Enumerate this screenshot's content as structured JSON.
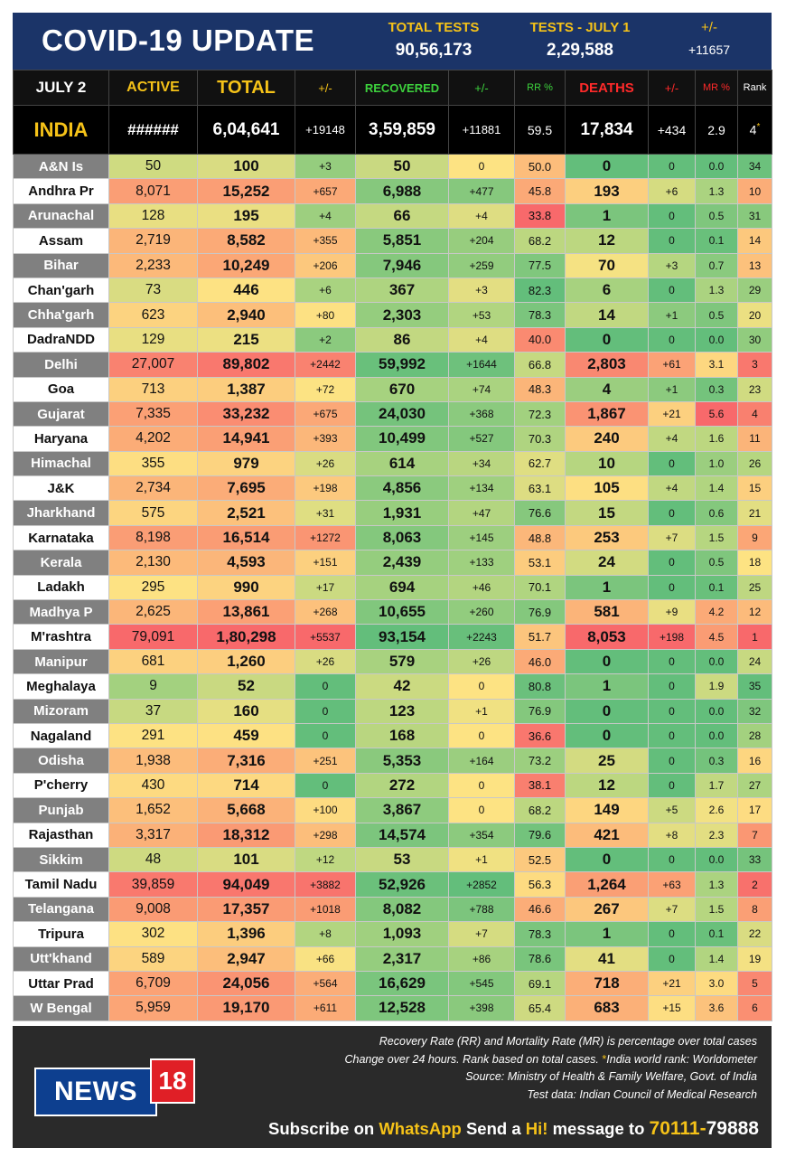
{
  "header": {
    "title": "COVID-19 UPDATE",
    "total_tests_label": "TOTAL TESTS",
    "total_tests_value": "90,56,173",
    "tests_day_label": "TESTS - JULY 1",
    "tests_day_value": "2,29,588",
    "change_label": "+/-",
    "change_value": "+11657"
  },
  "columns": {
    "date": "JULY 2",
    "active": "ACTIVE",
    "total": "TOTAL",
    "pm1": "+/-",
    "recovered": "RECOVERED",
    "pm2": "+/-",
    "rr": "RR %",
    "deaths": "DEATHS",
    "pm3": "+/-",
    "mr": "MR %",
    "rank": "Rank"
  },
  "india": {
    "name": "INDIA",
    "active": "######",
    "total": "6,04,641",
    "total_change": "+19148",
    "recovered": "3,59,859",
    "recovered_change": "+11881",
    "rr": "59.5",
    "deaths": "17,834",
    "deaths_change": "+434",
    "mr": "2.9",
    "rank": "4",
    "rank_mark": "*"
  },
  "palette": {
    "green": "#63be7b",
    "light_green": "#b1d580",
    "yellow": "#fde383",
    "orange": "#fbaa77",
    "red": "#f8696b",
    "header_blue": "#1b3468",
    "accent_yellow": "#f5c218"
  },
  "rows": [
    {
      "name": "A&N Is",
      "active": "50",
      "total": "100",
      "total_change": "+3",
      "recovered": "50",
      "recovered_change": "0",
      "rr": "50.0",
      "deaths": "0",
      "deaths_change": "0",
      "mr": "0.0",
      "rank": "34"
    },
    {
      "name": "Andhra Pr",
      "active": "8,071",
      "total": "15,252",
      "total_change": "+657",
      "recovered": "6,988",
      "recovered_change": "+477",
      "rr": "45.8",
      "deaths": "193",
      "deaths_change": "+6",
      "mr": "1.3",
      "rank": "10"
    },
    {
      "name": "Arunachal",
      "active": "128",
      "total": "195",
      "total_change": "+4",
      "recovered": "66",
      "recovered_change": "+4",
      "rr": "33.8",
      "deaths": "1",
      "deaths_change": "0",
      "mr": "0.5",
      "rank": "31"
    },
    {
      "name": "Assam",
      "active": "2,719",
      "total": "8,582",
      "total_change": "+355",
      "recovered": "5,851",
      "recovered_change": "+204",
      "rr": "68.2",
      "deaths": "12",
      "deaths_change": "0",
      "mr": "0.1",
      "rank": "14"
    },
    {
      "name": "Bihar",
      "active": "2,233",
      "total": "10,249",
      "total_change": "+206",
      "recovered": "7,946",
      "recovered_change": "+259",
      "rr": "77.5",
      "deaths": "70",
      "deaths_change": "+3",
      "mr": "0.7",
      "rank": "13"
    },
    {
      "name": "Chan'garh",
      "active": "73",
      "total": "446",
      "total_change": "+6",
      "recovered": "367",
      "recovered_change": "+3",
      "rr": "82.3",
      "deaths": "6",
      "deaths_change": "0",
      "mr": "1.3",
      "rank": "29"
    },
    {
      "name": "Chha'garh",
      "active": "623",
      "total": "2,940",
      "total_change": "+80",
      "recovered": "2,303",
      "recovered_change": "+53",
      "rr": "78.3",
      "deaths": "14",
      "deaths_change": "+1",
      "mr": "0.5",
      "rank": "20"
    },
    {
      "name": "DadraNDD",
      "active": "129",
      "total": "215",
      "total_change": "+2",
      "recovered": "86",
      "recovered_change": "+4",
      "rr": "40.0",
      "deaths": "0",
      "deaths_change": "0",
      "mr": "0.0",
      "rank": "30"
    },
    {
      "name": "Delhi",
      "active": "27,007",
      "total": "89,802",
      "total_change": "+2442",
      "recovered": "59,992",
      "recovered_change": "+1644",
      "rr": "66.8",
      "deaths": "2,803",
      "deaths_change": "+61",
      "mr": "3.1",
      "rank": "3"
    },
    {
      "name": "Goa",
      "active": "713",
      "total": "1,387",
      "total_change": "+72",
      "recovered": "670",
      "recovered_change": "+74",
      "rr": "48.3",
      "deaths": "4",
      "deaths_change": "+1",
      "mr": "0.3",
      "rank": "23"
    },
    {
      "name": "Gujarat",
      "active": "7,335",
      "total": "33,232",
      "total_change": "+675",
      "recovered": "24,030",
      "recovered_change": "+368",
      "rr": "72.3",
      "deaths": "1,867",
      "deaths_change": "+21",
      "mr": "5.6",
      "rank": "4"
    },
    {
      "name": "Haryana",
      "active": "4,202",
      "total": "14,941",
      "total_change": "+393",
      "recovered": "10,499",
      "recovered_change": "+527",
      "rr": "70.3",
      "deaths": "240",
      "deaths_change": "+4",
      "mr": "1.6",
      "rank": "11"
    },
    {
      "name": "Himachal",
      "active": "355",
      "total": "979",
      "total_change": "+26",
      "recovered": "614",
      "recovered_change": "+34",
      "rr": "62.7",
      "deaths": "10",
      "deaths_change": "0",
      "mr": "1.0",
      "rank": "26"
    },
    {
      "name": "J&K",
      "active": "2,734",
      "total": "7,695",
      "total_change": "+198",
      "recovered": "4,856",
      "recovered_change": "+134",
      "rr": "63.1",
      "deaths": "105",
      "deaths_change": "+4",
      "mr": "1.4",
      "rank": "15"
    },
    {
      "name": "Jharkhand",
      "active": "575",
      "total": "2,521",
      "total_change": "+31",
      "recovered": "1,931",
      "recovered_change": "+47",
      "rr": "76.6",
      "deaths": "15",
      "deaths_change": "0",
      "mr": "0.6",
      "rank": "21"
    },
    {
      "name": "Karnataka",
      "active": "8,198",
      "total": "16,514",
      "total_change": "+1272",
      "recovered": "8,063",
      "recovered_change": "+145",
      "rr": "48.8",
      "deaths": "253",
      "deaths_change": "+7",
      "mr": "1.5",
      "rank": "9"
    },
    {
      "name": "Kerala",
      "active": "2,130",
      "total": "4,593",
      "total_change": "+151",
      "recovered": "2,439",
      "recovered_change": "+133",
      "rr": "53.1",
      "deaths": "24",
      "deaths_change": "0",
      "mr": "0.5",
      "rank": "18"
    },
    {
      "name": "Ladakh",
      "active": "295",
      "total": "990",
      "total_change": "+17",
      "recovered": "694",
      "recovered_change": "+46",
      "rr": "70.1",
      "deaths": "1",
      "deaths_change": "0",
      "mr": "0.1",
      "rank": "25"
    },
    {
      "name": "Madhya P",
      "active": "2,625",
      "total": "13,861",
      "total_change": "+268",
      "recovered": "10,655",
      "recovered_change": "+260",
      "rr": "76.9",
      "deaths": "581",
      "deaths_change": "+9",
      "mr": "4.2",
      "rank": "12"
    },
    {
      "name": "M'rashtra",
      "active": "79,091",
      "total": "1,80,298",
      "total_change": "+5537",
      "recovered": "93,154",
      "recovered_change": "+2243",
      "rr": "51.7",
      "deaths": "8,053",
      "deaths_change": "+198",
      "mr": "4.5",
      "rank": "1"
    },
    {
      "name": "Manipur",
      "active": "681",
      "total": "1,260",
      "total_change": "+26",
      "recovered": "579",
      "recovered_change": "+26",
      "rr": "46.0",
      "deaths": "0",
      "deaths_change": "0",
      "mr": "0.0",
      "rank": "24"
    },
    {
      "name": "Meghalaya",
      "active": "9",
      "total": "52",
      "total_change": "0",
      "recovered": "42",
      "recovered_change": "0",
      "rr": "80.8",
      "deaths": "1",
      "deaths_change": "0",
      "mr": "1.9",
      "rank": "35"
    },
    {
      "name": "Mizoram",
      "active": "37",
      "total": "160",
      "total_change": "0",
      "recovered": "123",
      "recovered_change": "+1",
      "rr": "76.9",
      "deaths": "0",
      "deaths_change": "0",
      "mr": "0.0",
      "rank": "32"
    },
    {
      "name": "Nagaland",
      "active": "291",
      "total": "459",
      "total_change": "0",
      "recovered": "168",
      "recovered_change": "0",
      "rr": "36.6",
      "deaths": "0",
      "deaths_change": "0",
      "mr": "0.0",
      "rank": "28"
    },
    {
      "name": "Odisha",
      "active": "1,938",
      "total": "7,316",
      "total_change": "+251",
      "recovered": "5,353",
      "recovered_change": "+164",
      "rr": "73.2",
      "deaths": "25",
      "deaths_change": "0",
      "mr": "0.3",
      "rank": "16"
    },
    {
      "name": "P'cherry",
      "active": "430",
      "total": "714",
      "total_change": "0",
      "recovered": "272",
      "recovered_change": "0",
      "rr": "38.1",
      "deaths": "12",
      "deaths_change": "0",
      "mr": "1.7",
      "rank": "27"
    },
    {
      "name": "Punjab",
      "active": "1,652",
      "total": "5,668",
      "total_change": "+100",
      "recovered": "3,867",
      "recovered_change": "0",
      "rr": "68.2",
      "deaths": "149",
      "deaths_change": "+5",
      "mr": "2.6",
      "rank": "17"
    },
    {
      "name": "Rajasthan",
      "active": "3,317",
      "total": "18,312",
      "total_change": "+298",
      "recovered": "14,574",
      "recovered_change": "+354",
      "rr": "79.6",
      "deaths": "421",
      "deaths_change": "+8",
      "mr": "2.3",
      "rank": "7"
    },
    {
      "name": "Sikkim",
      "active": "48",
      "total": "101",
      "total_change": "+12",
      "recovered": "53",
      "recovered_change": "+1",
      "rr": "52.5",
      "deaths": "0",
      "deaths_change": "0",
      "mr": "0.0",
      "rank": "33"
    },
    {
      "name": "Tamil Nadu",
      "active": "39,859",
      "total": "94,049",
      "total_change": "+3882",
      "recovered": "52,926",
      "recovered_change": "+2852",
      "rr": "56.3",
      "deaths": "1,264",
      "deaths_change": "+63",
      "mr": "1.3",
      "rank": "2"
    },
    {
      "name": "Telangana",
      "active": "9,008",
      "total": "17,357",
      "total_change": "+1018",
      "recovered": "8,082",
      "recovered_change": "+788",
      "rr": "46.6",
      "deaths": "267",
      "deaths_change": "+7",
      "mr": "1.5",
      "rank": "8"
    },
    {
      "name": "Tripura",
      "active": "302",
      "total": "1,396",
      "total_change": "+8",
      "recovered": "1,093",
      "recovered_change": "+7",
      "rr": "78.3",
      "deaths": "1",
      "deaths_change": "0",
      "mr": "0.1",
      "rank": "22"
    },
    {
      "name": "Utt'khand",
      "active": "589",
      "total": "2,947",
      "total_change": "+66",
      "recovered": "2,317",
      "recovered_change": "+86",
      "rr": "78.6",
      "deaths": "41",
      "deaths_change": "0",
      "mr": "1.4",
      "rank": "19"
    },
    {
      "name": "Uttar Prad",
      "active": "6,709",
      "total": "24,056",
      "total_change": "+564",
      "recovered": "16,629",
      "recovered_change": "+545",
      "rr": "69.1",
      "deaths": "718",
      "deaths_change": "+21",
      "mr": "3.0",
      "rank": "5"
    },
    {
      "name": "W Bengal",
      "active": "5,959",
      "total": "19,170",
      "total_change": "+611",
      "recovered": "12,528",
      "recovered_change": "+398",
      "rr": "65.4",
      "deaths": "683",
      "deaths_change": "+15",
      "mr": "3.6",
      "rank": "6"
    }
  ],
  "footer": {
    "note1": "Recovery Rate (RR) and Mortality Rate (MR) is percentage over total cases",
    "note2a": "Change over 24 hours. Rank based on total cases.",
    "note2_star": "*",
    "note2b": "India world rank: Worldometer",
    "note3": "Source: Ministry of Health & Family Welfare, Govt. of India",
    "note4": "Test data: Indian Council of Medical Research",
    "logo_news": "NEWS",
    "logo_18": "18",
    "subscribe_1": "Subscribe on",
    "subscribe_whatsapp": "WhatsApp",
    "subscribe_2": "Send a",
    "subscribe_hi": "Hi!",
    "subscribe_3": "message to",
    "phone_a": "70111-",
    "phone_b": "79888"
  }
}
